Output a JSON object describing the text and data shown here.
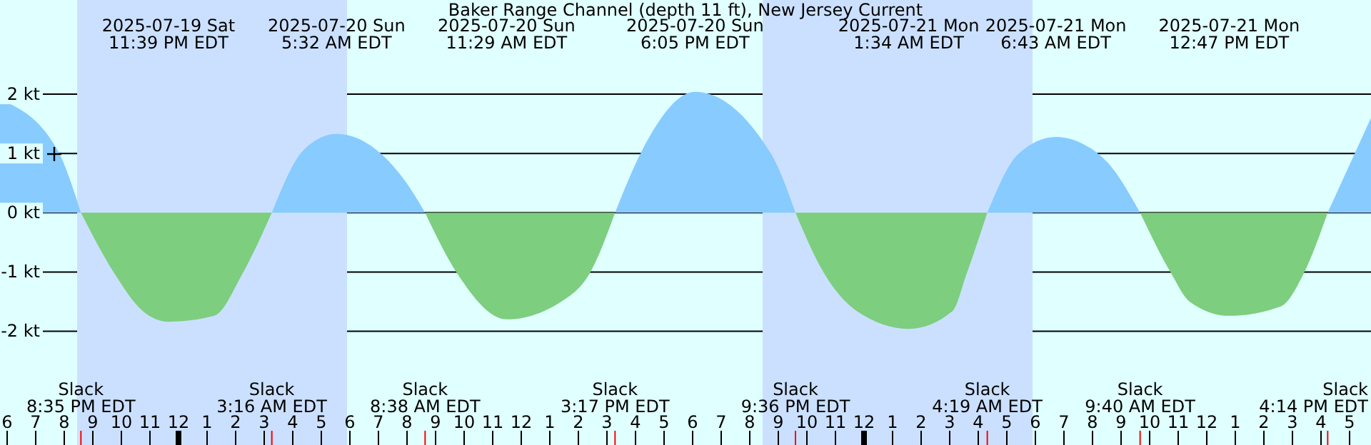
{
  "chart_data": {
    "type": "area",
    "title": "Baker Range Channel (depth 11 ft), New Jersey Current",
    "x": [
      "2025-07-19T17:45",
      "2025-07-19T19:45",
      "2025-07-19T20:35",
      "2025-07-19T21:45",
      "2025-07-19T22:45",
      "2025-07-19T23:39",
      "2025-07-20T01:15",
      "2025-07-20T02:15",
      "2025-07-20T03:16",
      "2025-07-20T04:24",
      "2025-07-20T05:32",
      "2025-07-20T07:06",
      "2025-07-20T08:06",
      "2025-07-20T08:38",
      "2025-07-20T09:45",
      "2025-07-20T11:29",
      "2025-07-20T13:24",
      "2025-07-20T14:24",
      "2025-07-20T15:17",
      "2025-07-20T16:15",
      "2025-07-20T18:05",
      "2025-07-20T20:45",
      "2025-07-20T21:36",
      "2025-07-20T22:36",
      "2025-07-20T23:45",
      "2025-07-21T01:34",
      "2025-07-21T03:06",
      "2025-07-21T03:36",
      "2025-07-21T04:19",
      "2025-07-21T05:24",
      "2025-07-21T06:43",
      "2025-07-21T08:24",
      "2025-07-21T09:40",
      "2025-07-21T10:45",
      "2025-07-21T11:24",
      "2025-07-21T12:47",
      "2025-07-21T14:36",
      "2025-07-21T15:24",
      "2025-07-21T16:14",
      "2025-07-21T17:45"
    ],
    "series": [
      {
        "color": "#87cbff",
        "values": [
          1.91,
          1.07,
          0,
          null,
          null,
          null,
          null,
          null,
          0,
          1.07,
          1.33,
          0.99,
          0.42,
          0,
          null,
          null,
          null,
          null,
          0,
          1.07,
          2.04,
          0.99,
          0,
          null,
          null,
          null,
          null,
          null,
          0,
          0.99,
          1.28,
          0.91,
          0,
          null,
          null,
          null,
          null,
          null,
          0,
          1.6
        ]
      },
      {
        "color": "#7dce7e",
        "values": [
          null,
          null,
          0,
          -1.02,
          -1.66,
          -1.84,
          -1.74,
          -1.02,
          0,
          null,
          null,
          null,
          null,
          0,
          -1.02,
          -1.8,
          -1.5,
          -1.02,
          0,
          null,
          null,
          null,
          0,
          -1.02,
          -1.66,
          -1.96,
          -1.66,
          -1.02,
          0,
          null,
          null,
          null,
          0,
          -1.02,
          -1.5,
          -1.74,
          -1.58,
          -1.02,
          0,
          null
        ]
      }
    ],
    "xlim": [
      "2025-07-19T17:45",
      "2025-07-21T17:45"
    ],
    "ylim": [
      -3.92,
      3.59
    ],
    "xticks": [
      {
        "value": "2025-07-19T18:00",
        "label": "6"
      },
      {
        "value": "2025-07-19T19:00",
        "label": "7"
      },
      {
        "value": "2025-07-19T20:00",
        "label": "8"
      },
      {
        "value": "2025-07-19T21:00",
        "label": "9"
      },
      {
        "value": "2025-07-19T22:00",
        "label": "10"
      },
      {
        "value": "2025-07-19T23:00",
        "label": "11"
      },
      {
        "value": "2025-07-20T00:00",
        "label": "12"
      },
      {
        "value": "2025-07-20T01:00",
        "label": "1"
      },
      {
        "value": "2025-07-20T02:00",
        "label": "2"
      },
      {
        "value": "2025-07-20T03:00",
        "label": "3"
      },
      {
        "value": "2025-07-20T04:00",
        "label": "4"
      },
      {
        "value": "2025-07-20T05:00",
        "label": "5"
      },
      {
        "value": "2025-07-20T06:00",
        "label": "6"
      },
      {
        "value": "2025-07-20T07:00",
        "label": "7"
      },
      {
        "value": "2025-07-20T08:00",
        "label": "8"
      },
      {
        "value": "2025-07-20T09:00",
        "label": "9"
      },
      {
        "value": "2025-07-20T10:00",
        "label": "10"
      },
      {
        "value": "2025-07-20T11:00",
        "label": "11"
      },
      {
        "value": "2025-07-20T12:00",
        "label": "12"
      },
      {
        "value": "2025-07-20T13:00",
        "label": "1"
      },
      {
        "value": "2025-07-20T14:00",
        "label": "2"
      },
      {
        "value": "2025-07-20T15:00",
        "label": "3"
      },
      {
        "value": "2025-07-20T16:00",
        "label": "4"
      },
      {
        "value": "2025-07-20T17:00",
        "label": "5"
      },
      {
        "value": "2025-07-20T18:00",
        "label": "6"
      },
      {
        "value": "2025-07-20T19:00",
        "label": "7"
      },
      {
        "value": "2025-07-20T20:00",
        "label": "8"
      },
      {
        "value": "2025-07-20T21:00",
        "label": "9"
      },
      {
        "value": "2025-07-20T22:00",
        "label": "10"
      },
      {
        "value": "2025-07-20T23:00",
        "label": "11"
      },
      {
        "value": "2025-07-21T00:00",
        "label": "12"
      },
      {
        "value": "2025-07-21T01:00",
        "label": "1"
      },
      {
        "value": "2025-07-21T02:00",
        "label": "2"
      },
      {
        "value": "2025-07-21T03:00",
        "label": "3"
      },
      {
        "value": "2025-07-21T04:00",
        "label": "4"
      },
      {
        "value": "2025-07-21T05:00",
        "label": "5"
      },
      {
        "value": "2025-07-21T06:00",
        "label": "6"
      },
      {
        "value": "2025-07-21T07:00",
        "label": "7"
      },
      {
        "value": "2025-07-21T08:00",
        "label": "8"
      },
      {
        "value": "2025-07-21T09:00",
        "label": "9"
      },
      {
        "value": "2025-07-21T10:00",
        "label": "10"
      },
      {
        "value": "2025-07-21T11:00",
        "label": "11"
      },
      {
        "value": "2025-07-21T12:00",
        "label": "12"
      },
      {
        "value": "2025-07-21T13:00",
        "label": "1"
      },
      {
        "value": "2025-07-21T14:00",
        "label": "2"
      },
      {
        "value": "2025-07-21T15:00",
        "label": "3"
      },
      {
        "value": "2025-07-21T16:00",
        "label": "4"
      },
      {
        "value": "2025-07-21T17:00",
        "label": "5"
      }
    ],
    "yticks": [
      {
        "value": 2,
        "label": "2 kt"
      },
      {
        "value": 1,
        "label": "1 kt"
      },
      {
        "value": 0,
        "label": "0 kt"
      },
      {
        "value": -1,
        "label": "-1 kt"
      },
      {
        "value": -2,
        "label": "-2 kt"
      }
    ],
    "grid": "y",
    "bands": [
      {
        "axis": "x",
        "from": "2025-07-19T20:27",
        "to": "2025-07-20T05:54",
        "color": "#cbe0ff"
      },
      {
        "axis": "x",
        "from": "2025-07-20T20:27",
        "to": "2025-07-21T05:54",
        "color": "#cbe0ff"
      }
    ],
    "annotations": [
      "2025-07-19 Sat\n11:39 PM EDT",
      "2025-07-20 Sun\n5:32 AM EDT",
      "2025-07-20 Sun\n11:29 AM EDT",
      "2025-07-20 Sun\n6:05 PM EDT",
      "2025-07-21 Mon\n1:34 AM EDT",
      "2025-07-21 Mon\n6:43 AM EDT",
      "2025-07-21 Mon\n12:47 PM EDT",
      "Slack\n8:35 PM EDT",
      "Slack\n3:16 AM EDT",
      "Slack\n8:38 AM EDT",
      "Slack\n3:17 PM EDT",
      "Slack\n9:36 PM EDT",
      "Slack\n4:19 AM EDT",
      "Slack\n9:40 AM EDT",
      "Slack\n4:14 PM EDT"
    ]
  }
}
